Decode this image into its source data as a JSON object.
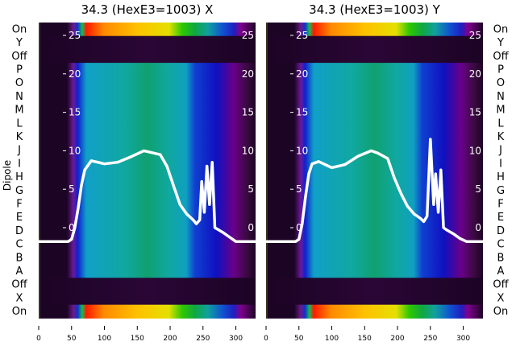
{
  "chart_data": {
    "type": "heatmap",
    "ylabel": "Dipole",
    "row_labels": [
      "On",
      "Y",
      "Off",
      "P",
      "O",
      "N",
      "M",
      "L",
      "K",
      "J",
      "I",
      "H",
      "G",
      "F",
      "E",
      "D",
      "C",
      "B",
      "A",
      "Off",
      "X",
      "On"
    ],
    "x_ticks": [
      "0",
      "50",
      "100",
      "150",
      "200",
      "250",
      "300"
    ],
    "xlim": [
      0,
      330
    ],
    "overlay_y_ticks": [
      "0",
      "5",
      "10",
      "15",
      "20",
      "25"
    ],
    "overlay_ylim": [
      -2,
      26
    ],
    "panels": [
      {
        "title": "34.3 (HexE3=1003) X",
        "line_x": [
          0,
          45,
          50,
          55,
          60,
          65,
          70,
          80,
          90,
          100,
          120,
          140,
          160,
          170,
          185,
          195,
          205,
          215,
          225,
          235,
          240,
          245,
          248,
          252,
          256,
          260,
          264,
          268,
          272,
          280,
          290,
          300,
          330
        ],
        "line_y": [
          -1.8,
          -1.8,
          -1.5,
          0,
          2.5,
          5.5,
          7.5,
          8.7,
          8.5,
          8.3,
          8.5,
          9.2,
          10,
          9.8,
          9.5,
          8,
          5.5,
          3,
          1.8,
          1,
          0.5,
          1,
          6,
          2,
          8,
          3,
          8.5,
          0,
          -0.2,
          -0.6,
          -1.2,
          -1.8,
          -1.8
        ]
      },
      {
        "title": "34.3 (HexE3=1003) Y",
        "line_x": [
          0,
          45,
          50,
          55,
          60,
          65,
          70,
          80,
          90,
          100,
          120,
          140,
          160,
          170,
          185,
          195,
          205,
          215,
          225,
          235,
          240,
          245,
          250,
          255,
          258,
          262,
          266,
          270,
          275,
          285,
          295,
          305,
          330
        ],
        "line_y": [
          -1.8,
          -1.8,
          -1.5,
          0.5,
          4,
          7,
          8.3,
          8.6,
          8.2,
          7.8,
          8.2,
          9.3,
          10,
          9.7,
          9,
          6.5,
          4.5,
          2.8,
          1.8,
          1.2,
          0.8,
          1.5,
          11.5,
          3,
          7,
          2,
          7.5,
          0,
          -0.3,
          -0.8,
          -1.4,
          -1.8,
          -1.8
        ]
      }
    ]
  }
}
